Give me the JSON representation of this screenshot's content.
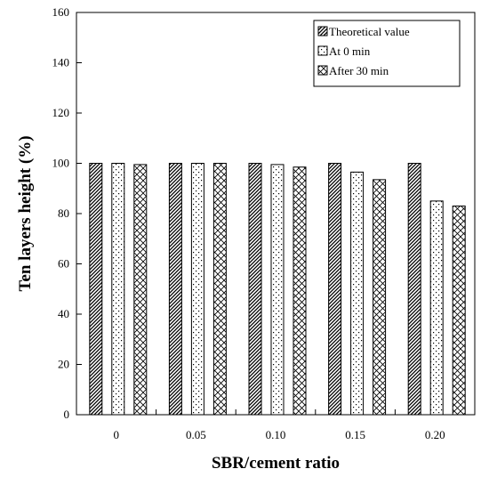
{
  "chart_data": {
    "type": "bar",
    "title": "",
    "xlabel": "SBR/cement ratio",
    "ylabel": "Ten layers height (%)",
    "categories": [
      "0",
      "0.05",
      "0.10",
      "0.15",
      "0.20"
    ],
    "ylim": [
      0,
      160
    ],
    "yticks": [
      "0",
      "20",
      "40",
      "60",
      "80",
      "100",
      "120",
      "140",
      "160"
    ],
    "grid": false,
    "legend_position": "top-right",
    "series": [
      {
        "name": "Theoretical value",
        "pattern": "diagonal-hatch",
        "values": [
          100,
          100,
          100,
          100,
          100
        ]
      },
      {
        "name": "At 0 min",
        "pattern": "dots",
        "values": [
          100,
          100,
          99.5,
          96.5,
          85
        ]
      },
      {
        "name": "After 30 min",
        "pattern": "cross-hatch",
        "values": [
          99.5,
          100,
          98.5,
          93.5,
          83
        ]
      }
    ]
  }
}
